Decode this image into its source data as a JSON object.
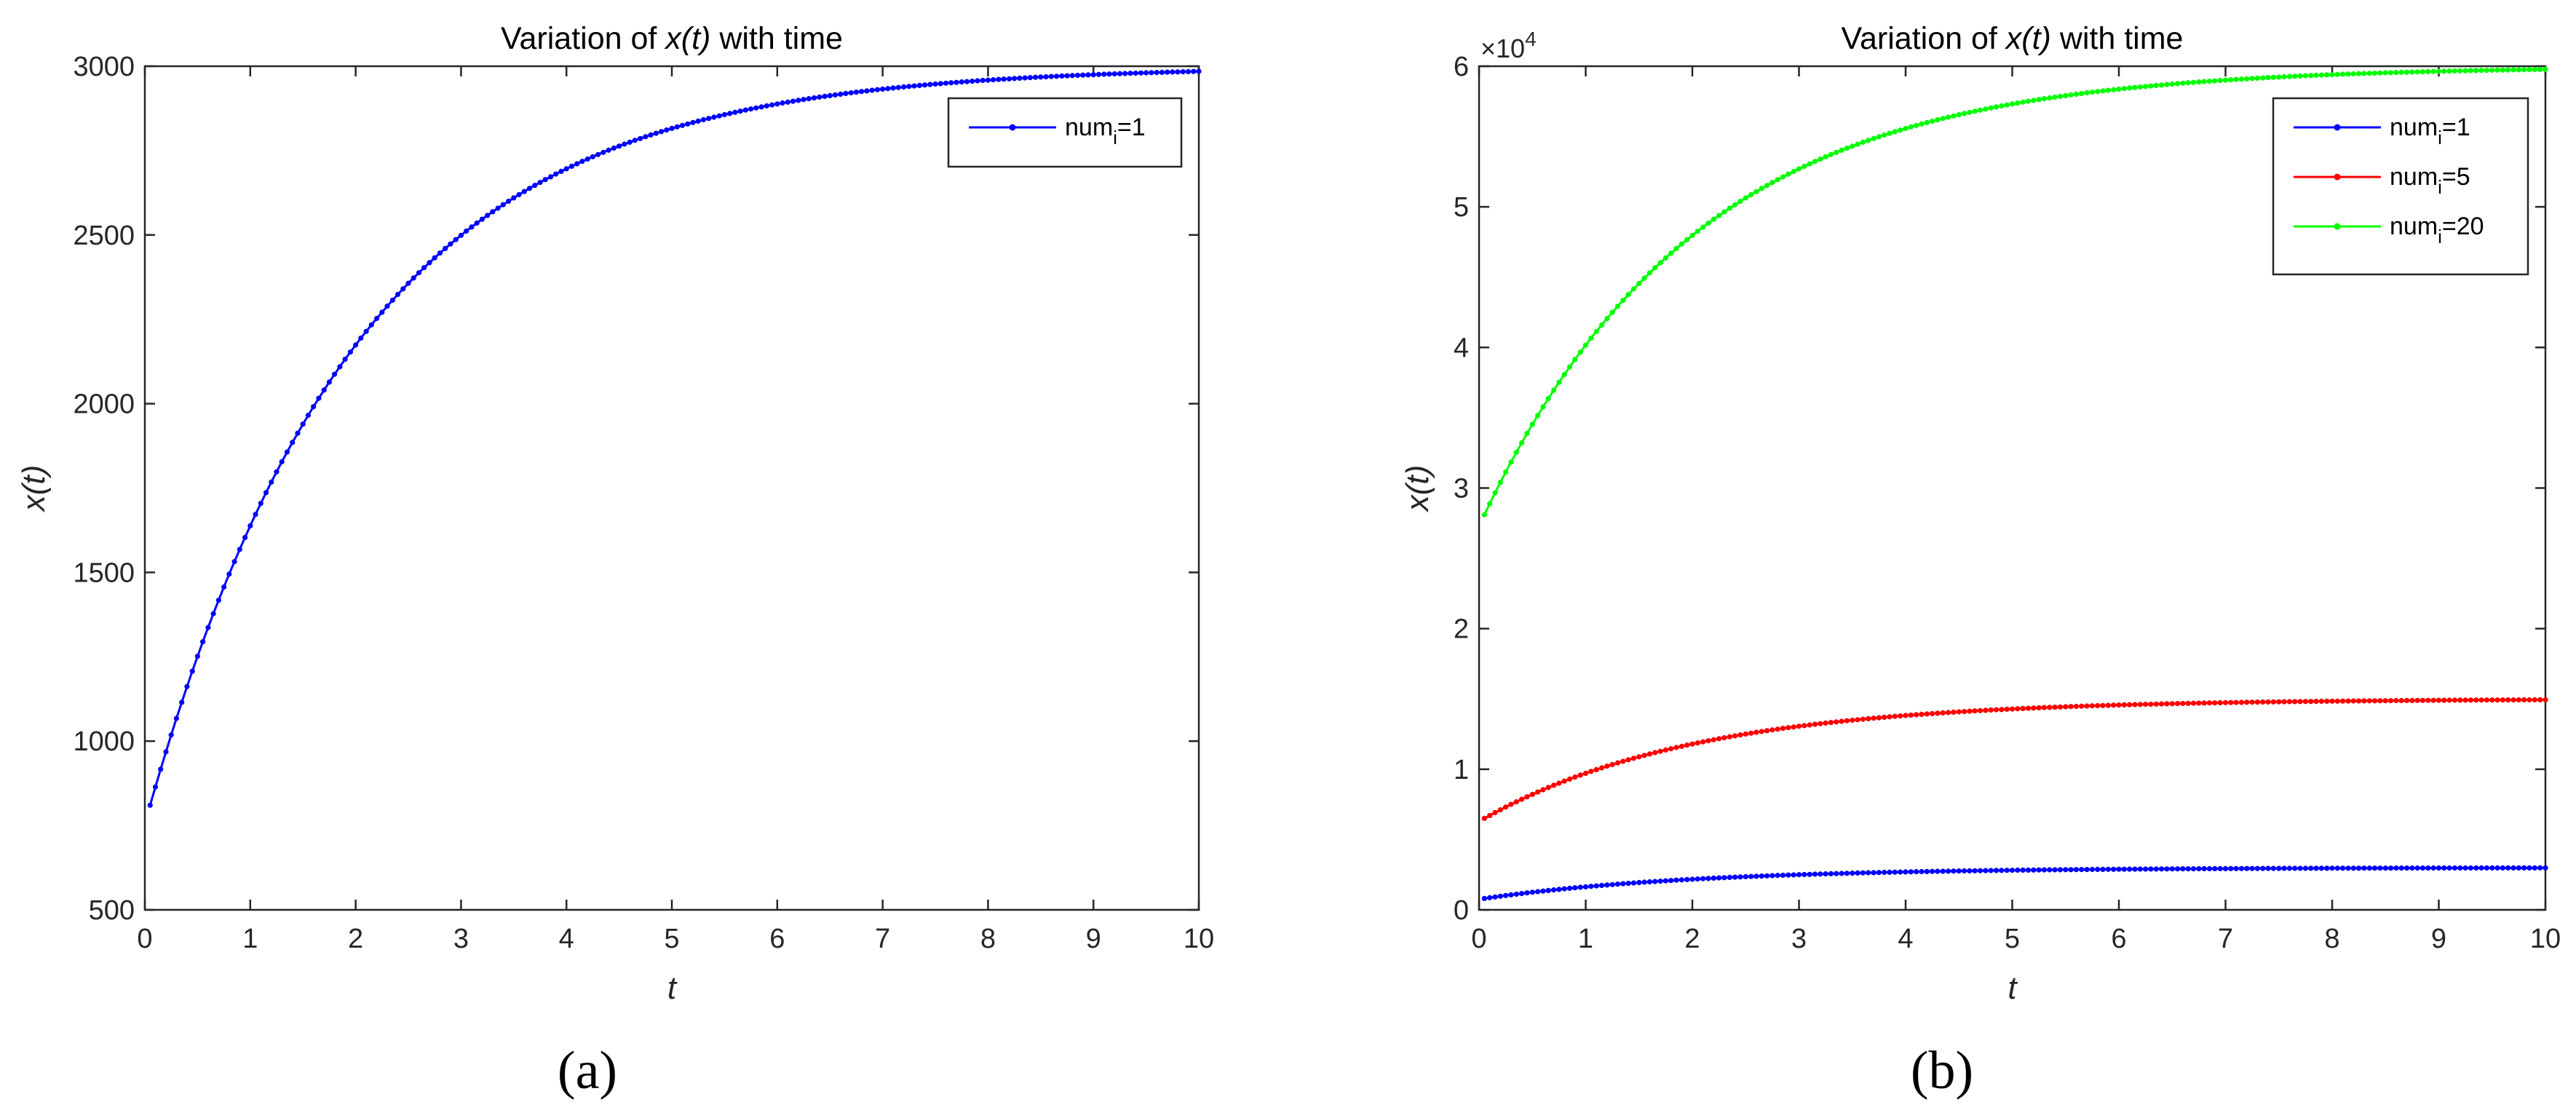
{
  "chart_data": [
    {
      "type": "line",
      "title": "Variation of x(t) with time",
      "title_parts": {
        "pre": "Variation of ",
        "var": "x(t)",
        "post": " with time"
      },
      "xlabel": "t",
      "ylabel": "x(t)",
      "xlim": [
        0,
        10
      ],
      "ylim": [
        500,
        3000
      ],
      "xticks": [
        0,
        1,
        2,
        3,
        4,
        5,
        6,
        7,
        8,
        9,
        10
      ],
      "yticks": [
        500,
        1000,
        1500,
        2000,
        2500,
        3000
      ],
      "ytick_labels": [
        "500",
        "1000",
        "1500",
        "2000",
        "2500",
        "3000"
      ],
      "legend_placement": "top-right",
      "grid": false,
      "caption": "(a)",
      "series": [
        {
          "name": "num_i=1",
          "legend_base": "num",
          "legend_sub": "i",
          "legend_tail": "=1",
          "color": "#0000ff",
          "start": 810,
          "end": 3000,
          "rate": 0.5,
          "t0": 0.05,
          "t1": 10,
          "points": 200
        }
      ]
    },
    {
      "type": "line",
      "title": "Variation of x(t) with time",
      "title_parts": {
        "pre": "Variation of ",
        "var": "x(t)",
        "post": " with time"
      },
      "xlabel": "t",
      "ylabel": "x(t)",
      "xlim": [
        0,
        10
      ],
      "ylim": [
        0,
        60000
      ],
      "xticks": [
        0,
        1,
        2,
        3,
        4,
        5,
        6,
        7,
        8,
        9,
        10
      ],
      "yticks": [
        0,
        10000,
        20000,
        30000,
        40000,
        50000,
        60000
      ],
      "ytick_labels": [
        "0",
        "1",
        "2",
        "3",
        "4",
        "5",
        "6"
      ],
      "y_multiplier": {
        "base": "×10",
        "exponent": "4"
      },
      "legend_placement": "top-right",
      "grid": false,
      "caption": "(b)",
      "series": [
        {
          "name": "num_i=1",
          "legend_base": "num",
          "legend_sub": "i",
          "legend_tail": "=1",
          "color": "#0000ff",
          "start": 810,
          "end": 3000,
          "rate": 0.5,
          "t0": 0.05,
          "t1": 10,
          "points": 200
        },
        {
          "name": "num_i=5",
          "legend_base": "num",
          "legend_sub": "i",
          "legend_tail": "=5",
          "color": "#ff0000",
          "start": 6500,
          "end": 15000,
          "rate": 0.5,
          "t0": 0.05,
          "t1": 10,
          "points": 200
        },
        {
          "name": "num_i=20",
          "legend_base": "num",
          "legend_sub": "i",
          "legend_tail": "=20",
          "color": "#00ff00",
          "start": 28100,
          "end": 60000,
          "rate": 0.5,
          "t0": 0.05,
          "t1": 10,
          "points": 200
        }
      ]
    }
  ]
}
